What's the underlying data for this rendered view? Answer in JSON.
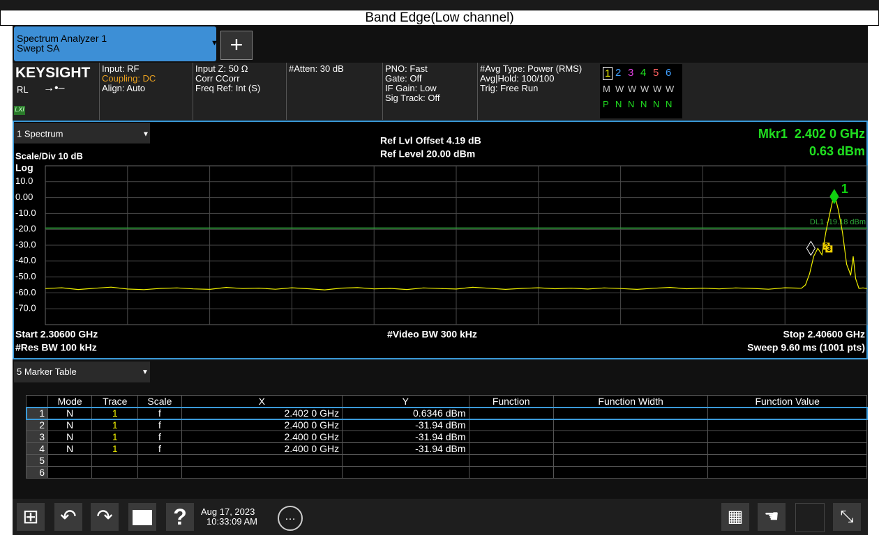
{
  "title": "Band Edge(Low channel)",
  "tab": {
    "name": "Spectrum Analyzer 1",
    "mode": "Swept SA"
  },
  "info": {
    "brand": "KEYSIGHT",
    "rl": "RL",
    "lxi": "LXI",
    "columns": [
      [
        "Input: RF",
        "Coupling: DC",
        "Align: Auto"
      ],
      [
        "Input Z: 50 Ω",
        "Corr CCorr",
        "Freq Ref: Int (S)"
      ],
      [
        "#Atten: 30 dB"
      ],
      [
        "PNO: Fast",
        "Gate: Off",
        "IF Gain: Low",
        "Sig Track: Off"
      ],
      [
        "#Avg Type: Power (RMS)",
        "Avg|Hold: 100/100",
        "Trig: Free Run"
      ]
    ]
  },
  "traces": {
    "numbers": [
      "1",
      "2",
      "3",
      "4",
      "5",
      "6"
    ],
    "types": [
      "M",
      "W",
      "W",
      "W",
      "W",
      "W"
    ],
    "detectors": [
      "P",
      "N",
      "N",
      "N",
      "N",
      "N"
    ]
  },
  "chart_data": {
    "type": "line",
    "window": "1 Spectrum",
    "scale": "Scale/Div 10 dB",
    "scale_type": "Log",
    "ref_offset": "Ref Lvl Offset 4.19 dB",
    "ref_level": "Ref Level 20.00 dBm",
    "marker_readout": [
      "Mkr1  2.402 0 GHz",
      "0.63 dBm"
    ],
    "start": "Start 2.30600 GHz",
    "stop": "Stop 2.40600 GHz",
    "vbw": "#Video BW 300 kHz",
    "rbw": "#Res BW 100 kHz",
    "sweep": "Sweep 9.60 ms (1001 pts)",
    "xlim": [
      2.306,
      2.406
    ],
    "ylim": [
      -80,
      20
    ],
    "xticks": [
      2.316,
      2.326,
      2.336,
      2.346,
      2.356,
      2.366,
      2.376,
      2.386,
      2.396
    ],
    "yticks": [
      {
        "value": 10,
        "label": "10.0"
      },
      {
        "value": 0,
        "label": "0.00"
      },
      {
        "value": -10,
        "label": "-10.0"
      },
      {
        "value": -20,
        "label": "-20.0"
      },
      {
        "value": -30,
        "label": "-30.0"
      },
      {
        "value": -40,
        "label": "-40.0"
      },
      {
        "value": -50,
        "label": "-50.0"
      },
      {
        "value": -60,
        "label": "-60.0"
      },
      {
        "value": -70,
        "label": "-70.0"
      }
    ],
    "grid": true,
    "color": "#f0f000",
    "x": [
      2.306,
      2.308,
      2.31,
      2.312,
      2.314,
      2.316,
      2.318,
      2.32,
      2.322,
      2.324,
      2.326,
      2.328,
      2.33,
      2.332,
      2.334,
      2.336,
      2.338,
      2.34,
      2.342,
      2.344,
      2.346,
      2.348,
      2.35,
      2.352,
      2.354,
      2.356,
      2.358,
      2.36,
      2.362,
      2.364,
      2.366,
      2.368,
      2.37,
      2.372,
      2.374,
      2.376,
      2.378,
      2.38,
      2.382,
      2.384,
      2.386,
      2.388,
      2.39,
      2.392,
      2.394,
      2.396,
      2.398,
      2.3985,
      2.399,
      2.3995,
      2.4,
      2.4005,
      2.401,
      2.4015,
      2.4018,
      2.402,
      2.4022,
      2.4025,
      2.403,
      2.4035,
      2.4038,
      2.404,
      2.4043,
      2.4046,
      2.405,
      2.4055,
      2.406
    ],
    "values": [
      -57.3,
      -56.8,
      -57.9,
      -57.1,
      -56.4,
      -57.6,
      -58.0,
      -57.2,
      -56.9,
      -57.5,
      -57.8,
      -56.6,
      -57.3,
      -57.0,
      -57.7,
      -56.8,
      -57.4,
      -58.1,
      -57.0,
      -56.7,
      -57.5,
      -57.2,
      -57.9,
      -56.9,
      -57.3,
      -57.6,
      -56.5,
      -57.1,
      -57.8,
      -57.2,
      -56.8,
      -57.4,
      -57.0,
      -57.6,
      -56.9,
      -57.3,
      -57.8,
      -57.1,
      -56.6,
      -57.4,
      -57.0,
      -57.5,
      -56.9,
      -57.2,
      -57.7,
      -56.8,
      -57.1,
      -55,
      -48,
      -37,
      -31.94,
      -36,
      -21,
      -9,
      -2,
      0.63,
      -1.5,
      -8,
      -22,
      -42,
      -46,
      -49,
      -37,
      -51,
      -57.2,
      -56.9,
      -57.3
    ],
    "display_line": {
      "label": "DL1 -19.18 dBm",
      "value": -19.18,
      "color": "#2fa83a"
    },
    "markers": [
      {
        "label": "1",
        "x": 2.402,
        "y": 0.63,
        "color": "#10d010"
      },
      {
        "label": "2",
        "x": 2.4,
        "y": -31.94,
        "color": "#f0d000"
      },
      {
        "label": "3",
        "x": 2.4,
        "y": -31.94,
        "color": "#f0d000"
      },
      {
        "x": 2.4,
        "y": -31.94,
        "color": "#ffffff"
      }
    ]
  },
  "marker_table": {
    "title": "5 Marker Table",
    "columns": [
      "Mode",
      "Trace",
      "Scale",
      "X",
      "Y",
      "Function",
      "Function Width",
      "Function Value"
    ],
    "rows": [
      [
        "1",
        "N",
        "1",
        "f",
        "2.402 0 GHz",
        "0.6346 dBm"
      ],
      [
        "2",
        "N",
        "1",
        "f",
        "2.400 0 GHz",
        "-31.94 dBm"
      ],
      [
        "3",
        "N",
        "1",
        "f",
        "2.400 0 GHz",
        "-31.94 dBm"
      ],
      [
        "4",
        "N",
        "1",
        "f",
        "2.400 0 GHz",
        "-31.94 dBm"
      ],
      [
        "5"
      ],
      [
        "6"
      ]
    ]
  },
  "taskbar": {
    "date": "Aug 17, 2023",
    "time": "10:33:09 AM"
  }
}
